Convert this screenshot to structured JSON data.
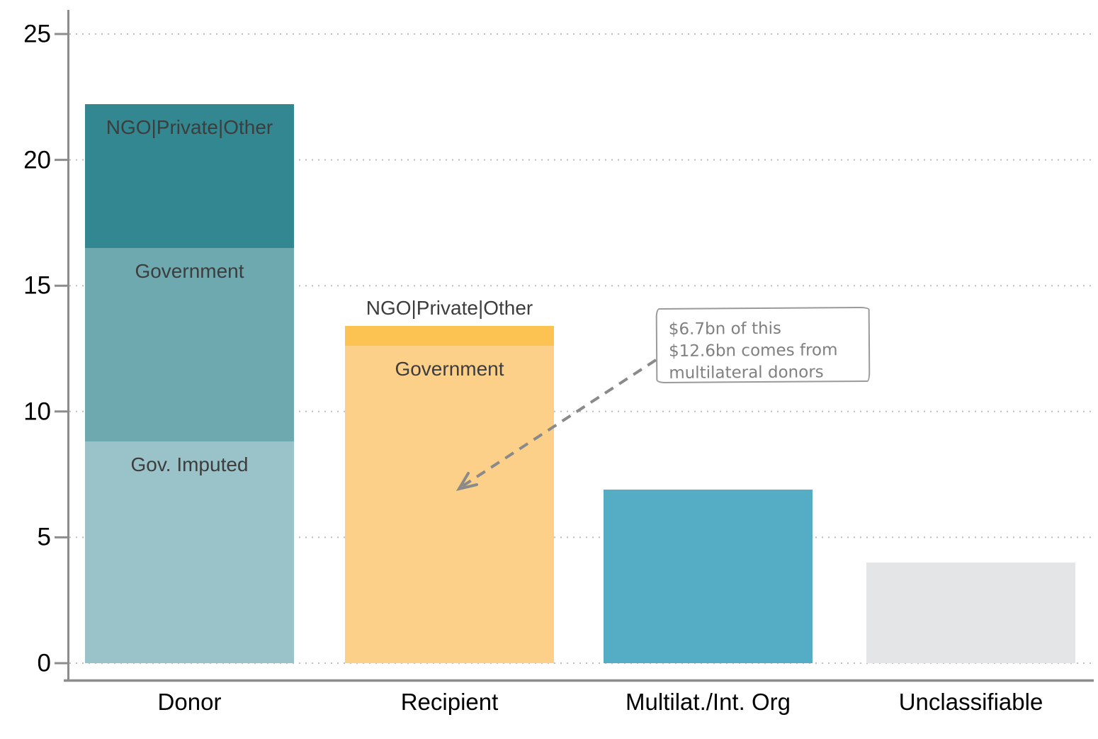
{
  "chart_data": {
    "type": "bar",
    "stacked": true,
    "title": "",
    "xlabel": "",
    "ylabel": "",
    "ylim": [
      0,
      25
    ],
    "yticks": [
      0,
      5,
      10,
      15,
      20,
      25
    ],
    "grid": "horizontal dotted gridlines at each ytick, drawn under bars",
    "legend": "none (segments labeled inside bars)",
    "categories": [
      "Donor",
      "Recipient",
      "Multilat./Int. Org",
      "Unclassifiable"
    ],
    "bars": [
      {
        "category": "Donor",
        "total": 22.2,
        "stack": [
          {
            "label": "Gov. Imputed",
            "value": 8.8,
            "color": "#9ac3c9",
            "label_pos": "inside"
          },
          {
            "label": "Government",
            "value": 7.7,
            "color": "#6fa9b0",
            "label_pos": "inside"
          },
          {
            "label": "NGO|Private|Other",
            "value": 5.7,
            "color": "#338790",
            "label_pos": "inside"
          }
        ]
      },
      {
        "category": "Recipient",
        "total": 13.4,
        "stack": [
          {
            "label": "Government",
            "value": 12.6,
            "color": "#fdd089",
            "label_pos": "inside"
          },
          {
            "label": "NGO|Private|Other",
            "value": 0.8,
            "color": "#fcc353",
            "label_pos": "above"
          }
        ]
      },
      {
        "category": "Multilat./Int. Org",
        "total": 6.9,
        "stack": [
          {
            "label": "",
            "value": 6.9,
            "color": "#55acc5",
            "label_pos": "none"
          }
        ]
      },
      {
        "category": "Unclassifiable",
        "total": 4.0,
        "stack": [
          {
            "label": "",
            "value": 4.0,
            "color": "#e4e5e7",
            "label_pos": "none"
          }
        ]
      }
    ],
    "annotation": {
      "lines": [
        "$6.7bn of this",
        "$12.6bn comes from",
        "multilateral donors"
      ],
      "points_to": "Recipient bar (Government segment)",
      "text_color": "#808080",
      "border_color": "#9a9a9a",
      "arrow_style": "gray dashed line with open arrowhead"
    },
    "colors": {
      "axis": "#8c8c8c",
      "grid": "#bdbdbd",
      "tick_label": "#000000",
      "bar_label": "#3d3d3d",
      "background": "#ffffff"
    }
  }
}
